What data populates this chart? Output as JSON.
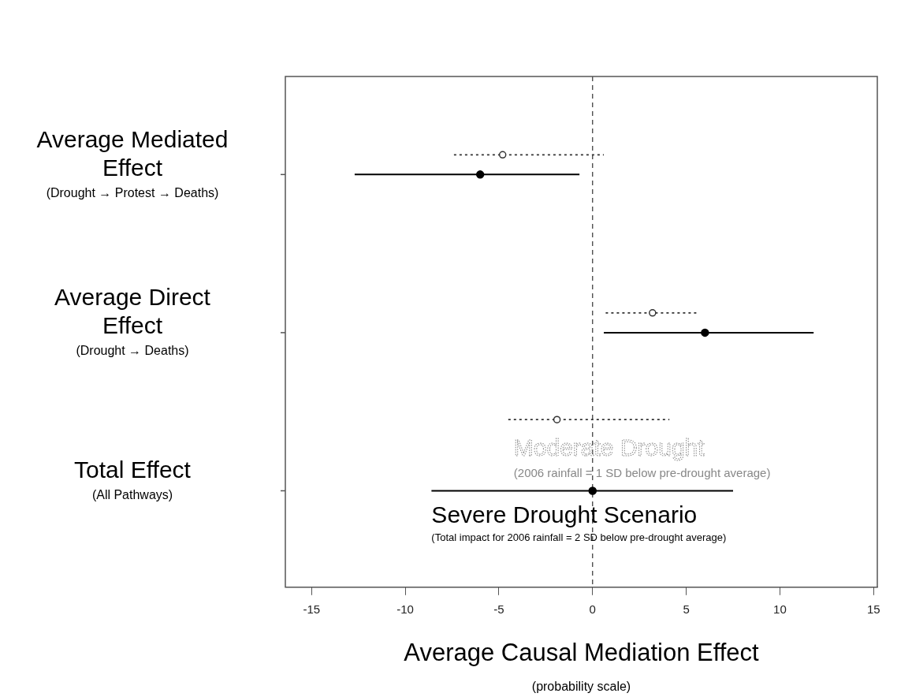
{
  "chart_data": {
    "type": "scatter",
    "orientation": "horizontal",
    "categories": [
      "Average Mediated Effect (Drought → Protest → Deaths)",
      "Average Direct Effect (Drought → Deaths)",
      "Total Effect (All Pathways)"
    ],
    "series": [
      {
        "name": "Moderate Drought",
        "color": "#333333",
        "line_style": "dotted",
        "values": [
          -4.8,
          3.2,
          -1.9
        ],
        "errors": [
          [
            -7.4,
            0.6
          ],
          [
            0.7,
            5.6
          ],
          [
            -4.5,
            4.1
          ]
        ]
      },
      {
        "name": "Severe Drought Scenario",
        "color": "#000000",
        "line_style": "solid",
        "values": [
          -6.0,
          6.0,
          0.0
        ],
        "errors": [
          [
            -12.7,
            -0.7
          ],
          [
            0.6,
            11.8
          ],
          [
            -8.6,
            7.5
          ]
        ]
      }
    ],
    "xlabel": "Average Causal Mediation Effect",
    "annotations": [
      "(2006 rainfall = 1 SD below pre-drought average)",
      "(Total impact for 2006 rainfall = 2 SD below pre-drought average)",
      "(probability scale)"
    ],
    "xlim": [
      -16.4,
      15.2
    ],
    "xticks": [
      -15,
      -10,
      -5,
      0,
      5,
      10,
      15
    ],
    "ref_lines": [
      {
        "axis": "x",
        "value": 0,
        "line_style": "dashed",
        "color": "#333333"
      }
    ],
    "marker": "circle",
    "grid": false,
    "legend": false
  }
}
